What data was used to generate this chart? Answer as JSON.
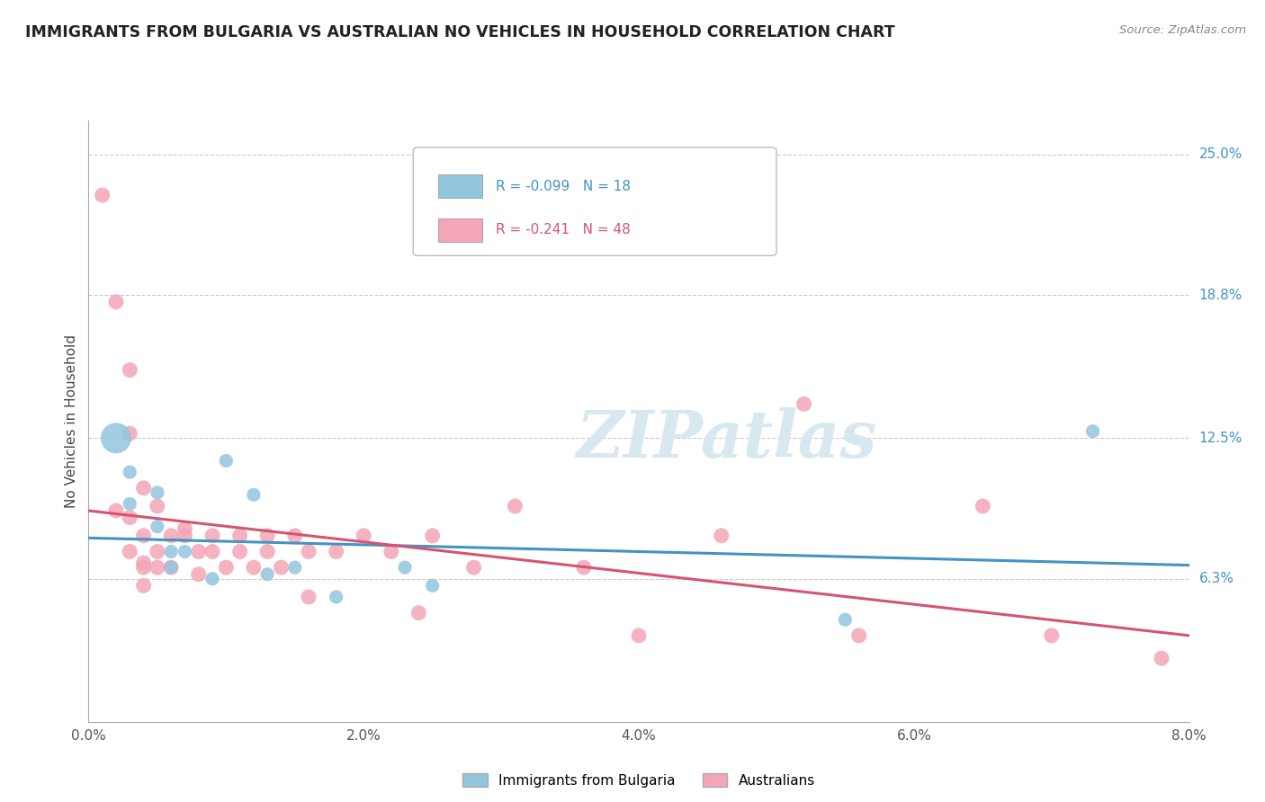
{
  "title": "IMMIGRANTS FROM BULGARIA VS AUSTRALIAN NO VEHICLES IN HOUSEHOLD CORRELATION CHART",
  "source": "Source: ZipAtlas.com",
  "ylabel": "No Vehicles in Household",
  "xlabel_ticks": [
    "0.0%",
    "2.0%",
    "4.0%",
    "6.0%",
    "8.0%"
  ],
  "xlabel_vals": [
    0.0,
    0.02,
    0.04,
    0.06,
    0.08
  ],
  "ylabel_ticks": [
    "6.3%",
    "12.5%",
    "18.8%",
    "25.0%"
  ],
  "ylabel_vals": [
    0.063,
    0.125,
    0.188,
    0.25
  ],
  "xlim": [
    0.0,
    0.08
  ],
  "ylim": [
    0.0,
    0.265
  ],
  "legend_blue_label": "Immigrants from Bulgaria",
  "legend_pink_label": "Australians",
  "blue_R": "-0.099",
  "blue_N": "18",
  "pink_R": "-0.241",
  "pink_N": "48",
  "blue_color": "#92c5de",
  "pink_color": "#f4a6b8",
  "blue_line_color": "#4393c3",
  "pink_line_color": "#d6556e",
  "watermark_color": "#d8e8f0",
  "blue_points": [
    [
      0.002,
      0.125
    ],
    [
      0.003,
      0.11
    ],
    [
      0.003,
      0.096
    ],
    [
      0.005,
      0.101
    ],
    [
      0.005,
      0.086
    ],
    [
      0.006,
      0.068
    ],
    [
      0.006,
      0.075
    ],
    [
      0.007,
      0.075
    ],
    [
      0.009,
      0.063
    ],
    [
      0.01,
      0.115
    ],
    [
      0.012,
      0.1
    ],
    [
      0.013,
      0.065
    ],
    [
      0.015,
      0.068
    ],
    [
      0.018,
      0.055
    ],
    [
      0.023,
      0.068
    ],
    [
      0.025,
      0.06
    ],
    [
      0.055,
      0.045
    ],
    [
      0.073,
      0.128
    ]
  ],
  "blue_sizes": [
    600,
    120,
    120,
    120,
    120,
    120,
    120,
    120,
    120,
    120,
    120,
    120,
    120,
    120,
    120,
    120,
    120,
    120
  ],
  "pink_points": [
    [
      0.001,
      0.232
    ],
    [
      0.002,
      0.185
    ],
    [
      0.003,
      0.155
    ],
    [
      0.003,
      0.127
    ],
    [
      0.004,
      0.103
    ],
    [
      0.002,
      0.093
    ],
    [
      0.003,
      0.09
    ],
    [
      0.003,
      0.075
    ],
    [
      0.004,
      0.07
    ],
    [
      0.004,
      0.082
    ],
    [
      0.004,
      0.068
    ],
    [
      0.005,
      0.068
    ],
    [
      0.004,
      0.06
    ],
    [
      0.005,
      0.095
    ],
    [
      0.006,
      0.082
    ],
    [
      0.005,
      0.075
    ],
    [
      0.006,
      0.068
    ],
    [
      0.007,
      0.085
    ],
    [
      0.007,
      0.082
    ],
    [
      0.008,
      0.075
    ],
    [
      0.008,
      0.065
    ],
    [
      0.009,
      0.082
    ],
    [
      0.009,
      0.075
    ],
    [
      0.01,
      0.068
    ],
    [
      0.011,
      0.082
    ],
    [
      0.011,
      0.075
    ],
    [
      0.012,
      0.068
    ],
    [
      0.013,
      0.082
    ],
    [
      0.013,
      0.075
    ],
    [
      0.014,
      0.068
    ],
    [
      0.015,
      0.082
    ],
    [
      0.016,
      0.075
    ],
    [
      0.016,
      0.055
    ],
    [
      0.018,
      0.075
    ],
    [
      0.02,
      0.082
    ],
    [
      0.022,
      0.075
    ],
    [
      0.024,
      0.048
    ],
    [
      0.025,
      0.082
    ],
    [
      0.028,
      0.068
    ],
    [
      0.031,
      0.095
    ],
    [
      0.036,
      0.068
    ],
    [
      0.04,
      0.038
    ],
    [
      0.046,
      0.082
    ],
    [
      0.052,
      0.14
    ],
    [
      0.056,
      0.038
    ],
    [
      0.065,
      0.095
    ],
    [
      0.07,
      0.038
    ],
    [
      0.078,
      0.028
    ]
  ],
  "pink_sizes": [
    150,
    150,
    150,
    150,
    150,
    150,
    150,
    150,
    150,
    150,
    150,
    150,
    150,
    150,
    150,
    150,
    150,
    150,
    150,
    150,
    150,
    150,
    150,
    150,
    150,
    150,
    150,
    150,
    150,
    150,
    150,
    150,
    150,
    150,
    150,
    150,
    150,
    150,
    150,
    150,
    150,
    150,
    150,
    150,
    150,
    150,
    150,
    150
  ],
  "blue_line": [
    [
      0.0,
      0.081
    ],
    [
      0.08,
      0.069
    ]
  ],
  "pink_line": [
    [
      0.0,
      0.093
    ],
    [
      0.08,
      0.038
    ]
  ]
}
